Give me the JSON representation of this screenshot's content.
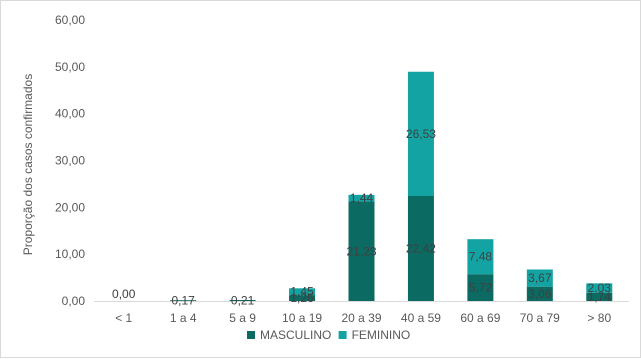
{
  "chart_data": {
    "type": "bar",
    "stacked": true,
    "categories": [
      "< 1",
      "1 a 4",
      "5 a 9",
      "10 a 19",
      "20 a 39",
      "40 a 59",
      "60 a 69",
      "70 a 79",
      "> 80"
    ],
    "series": [
      {
        "name": "MASCULINO",
        "color": "#0b6a62",
        "values": [
          0.0,
          0.17,
          0.21,
          1.26,
          21.23,
          22.42,
          5.72,
          3.06,
          1.74
        ],
        "labels": [
          "0,00",
          "0,17",
          "0,21",
          "1,26",
          "21,23",
          "22,42",
          "5,72",
          "3,06",
          "1,74"
        ]
      },
      {
        "name": "FEMININO",
        "color": "#14a3a3",
        "values": [
          0.0,
          0.0,
          0.0,
          1.45,
          1.44,
          26.53,
          7.48,
          3.67,
          2.03
        ],
        "labels": [
          "",
          "",
          "",
          "1,45",
          "1,44",
          "26,53",
          "7,48",
          "3,67",
          "2,03"
        ]
      }
    ],
    "title": "",
    "xlabel": "",
    "ylabel": "Proporção dos casos confirmados",
    "ylim": [
      0,
      60
    ],
    "yticks": [
      0,
      10,
      20,
      30,
      40,
      50,
      60
    ],
    "ytick_labels": [
      "0,00",
      "10,00",
      "20,00",
      "30,00",
      "40,00",
      "50,00",
      "60,00"
    ],
    "grid": false,
    "legend": "bottom"
  }
}
